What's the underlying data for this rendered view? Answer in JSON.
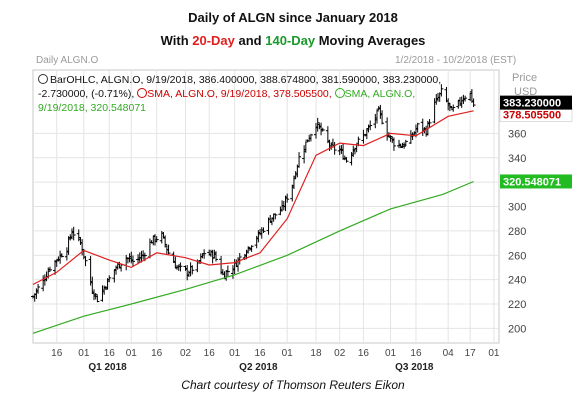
{
  "header": {
    "title_line1": "Daily of ALGN since January 2018",
    "title_line2_prefix": "With ",
    "title_line2_fast": "20-Day",
    "title_line2_mid": " and ",
    "title_line2_slow": "140-Day",
    "title_line2_suffix": " Moving Averages",
    "symbol_label": "Daily ALGN.O",
    "date_range": "1/2/2018 - 10/2/2018 (EST)",
    "price_label": "Price",
    "currency_label": "USD"
  },
  "info": {
    "bar_line": "BarOHLC, ALGN.O, 9/19/2018, 386.400000, 388.674800, 381.590000, 383.230000,",
    "bar_change": "-2.730000, (-0.71%),",
    "sma20_line": "SMA, ALGN.O, 9/19/2018, 378.505500,",
    "sma140_prefix": "SMA, ALGN.O,",
    "sma140_line": "9/19/2018, 320.548071"
  },
  "labels": {
    "price_tag": "383.230000",
    "sma20_tag": "378.505500",
    "sma140_tag": "320.548071"
  },
  "caption": "Chart courtesy of Thomson Reuters Eikon",
  "colors": {
    "sma20": "#e02020",
    "sma140": "#33aa22",
    "bars": "#000000",
    "price_tag_bg": "#000000",
    "sma140_tag_bg": "#22bb22",
    "sma20_tag_text": "#cc0000"
  },
  "chart_data": {
    "type": "line",
    "title": "Daily of ALGN since January 2018",
    "subtitle": "With 20-Day and 140-Day Moving Averages",
    "ylabel": "Price USD",
    "ylim": [
      188,
      412
    ],
    "yticks": [
      200,
      220,
      240,
      260,
      280,
      300,
      320,
      340,
      360
    ],
    "x_ticks": [
      {
        "label": "16",
        "date": "2018-01-16"
      },
      {
        "label": "01",
        "date": "2018-02-01"
      },
      {
        "label": "16",
        "date": "2018-02-16"
      },
      {
        "label": "01",
        "date": "2018-03-01"
      },
      {
        "label": "16",
        "date": "2018-03-16"
      },
      {
        "label": "02",
        "date": "2018-04-02"
      },
      {
        "label": "16",
        "date": "2018-04-16"
      },
      {
        "label": "01",
        "date": "2018-05-01"
      },
      {
        "label": "16",
        "date": "2018-05-16"
      },
      {
        "label": "01",
        "date": "2018-06-01"
      },
      {
        "label": "18",
        "date": "2018-06-18"
      },
      {
        "label": "02",
        "date": "2018-07-02"
      },
      {
        "label": "16",
        "date": "2018-07-16"
      },
      {
        "label": "01",
        "date": "2018-08-01"
      },
      {
        "label": "16",
        "date": "2018-08-16"
      },
      {
        "label": "04",
        "date": "2018-09-04"
      },
      {
        "label": "17",
        "date": "2018-09-17"
      },
      {
        "label": "01",
        "date": "2018-10-01"
      }
    ],
    "x_groups": [
      {
        "label": "Q1 2018",
        "date": "2018-02-15"
      },
      {
        "label": "Q2 2018",
        "date": "2018-05-15"
      },
      {
        "label": "Q3 2018",
        "date": "2018-08-15"
      }
    ],
    "grid": true,
    "last_bar": {
      "date": "2018-09-19",
      "open": 386.4,
      "high": 388.6748,
      "low": 381.59,
      "close": 383.23
    },
    "series": [
      {
        "name": "BarOHLC",
        "kind": "ohlc",
        "closes_approx": [
          {
            "date": "2018-01-02",
            "value": 226
          },
          {
            "date": "2018-01-05",
            "value": 233
          },
          {
            "date": "2018-01-09",
            "value": 242
          },
          {
            "date": "2018-01-12",
            "value": 250
          },
          {
            "date": "2018-01-17",
            "value": 258
          },
          {
            "date": "2018-01-22",
            "value": 266
          },
          {
            "date": "2018-01-25",
            "value": 280
          },
          {
            "date": "2018-01-30",
            "value": 270
          },
          {
            "date": "2018-02-02",
            "value": 255
          },
          {
            "date": "2018-02-06",
            "value": 232
          },
          {
            "date": "2018-02-09",
            "value": 224
          },
          {
            "date": "2018-02-14",
            "value": 236
          },
          {
            "date": "2018-02-20",
            "value": 250
          },
          {
            "date": "2018-02-26",
            "value": 258
          },
          {
            "date": "2018-03-02",
            "value": 255
          },
          {
            "date": "2018-03-08",
            "value": 260
          },
          {
            "date": "2018-03-13",
            "value": 272
          },
          {
            "date": "2018-03-19",
            "value": 276
          },
          {
            "date": "2018-03-23",
            "value": 262
          },
          {
            "date": "2018-03-28",
            "value": 250
          },
          {
            "date": "2018-04-03",
            "value": 246
          },
          {
            "date": "2018-04-09",
            "value": 252
          },
          {
            "date": "2018-04-13",
            "value": 262
          },
          {
            "date": "2018-04-19",
            "value": 260
          },
          {
            "date": "2018-04-24",
            "value": 244
          },
          {
            "date": "2018-04-30",
            "value": 250
          },
          {
            "date": "2018-05-04",
            "value": 258
          },
          {
            "date": "2018-05-10",
            "value": 268
          },
          {
            "date": "2018-05-16",
            "value": 278
          },
          {
            "date": "2018-05-22",
            "value": 290
          },
          {
            "date": "2018-05-29",
            "value": 298
          },
          {
            "date": "2018-06-04",
            "value": 318
          },
          {
            "date": "2018-06-08",
            "value": 340
          },
          {
            "date": "2018-06-13",
            "value": 355
          },
          {
            "date": "2018-06-18",
            "value": 368
          },
          {
            "date": "2018-06-22",
            "value": 360
          },
          {
            "date": "2018-06-27",
            "value": 348
          },
          {
            "date": "2018-07-02",
            "value": 346
          },
          {
            "date": "2018-07-06",
            "value": 338
          },
          {
            "date": "2018-07-11",
            "value": 350
          },
          {
            "date": "2018-07-16",
            "value": 358
          },
          {
            "date": "2018-07-20",
            "value": 366
          },
          {
            "date": "2018-07-25",
            "value": 378
          },
          {
            "date": "2018-07-30",
            "value": 360
          },
          {
            "date": "2018-08-03",
            "value": 352
          },
          {
            "date": "2018-08-08",
            "value": 350
          },
          {
            "date": "2018-08-13",
            "value": 356
          },
          {
            "date": "2018-08-17",
            "value": 366
          },
          {
            "date": "2018-08-22",
            "value": 362
          },
          {
            "date": "2018-08-27",
            "value": 384
          },
          {
            "date": "2018-08-31",
            "value": 394
          },
          {
            "date": "2018-09-06",
            "value": 378
          },
          {
            "date": "2018-09-10",
            "value": 384
          },
          {
            "date": "2018-09-13",
            "value": 390
          },
          {
            "date": "2018-09-17",
            "value": 392
          },
          {
            "date": "2018-09-19",
            "value": 383.23
          }
        ]
      },
      {
        "name": "SMA 20",
        "kind": "line",
        "points": [
          {
            "date": "2018-01-02",
            "value": 236
          },
          {
            "date": "2018-01-16",
            "value": 246
          },
          {
            "date": "2018-02-01",
            "value": 264
          },
          {
            "date": "2018-02-16",
            "value": 256
          },
          {
            "date": "2018-03-01",
            "value": 250
          },
          {
            "date": "2018-03-16",
            "value": 262
          },
          {
            "date": "2018-04-02",
            "value": 258
          },
          {
            "date": "2018-04-16",
            "value": 252
          },
          {
            "date": "2018-05-01",
            "value": 254
          },
          {
            "date": "2018-05-16",
            "value": 262
          },
          {
            "date": "2018-06-01",
            "value": 290
          },
          {
            "date": "2018-06-18",
            "value": 342
          },
          {
            "date": "2018-07-02",
            "value": 352
          },
          {
            "date": "2018-07-16",
            "value": 350
          },
          {
            "date": "2018-08-01",
            "value": 360
          },
          {
            "date": "2018-08-16",
            "value": 358
          },
          {
            "date": "2018-09-04",
            "value": 374
          },
          {
            "date": "2018-09-19",
            "value": 378.5055
          }
        ]
      },
      {
        "name": "SMA 140",
        "kind": "line",
        "points": [
          {
            "date": "2018-01-02",
            "value": 196
          },
          {
            "date": "2018-02-01",
            "value": 210
          },
          {
            "date": "2018-03-01",
            "value": 220
          },
          {
            "date": "2018-04-02",
            "value": 232
          },
          {
            "date": "2018-05-01",
            "value": 244
          },
          {
            "date": "2018-06-01",
            "value": 260
          },
          {
            "date": "2018-07-02",
            "value": 280
          },
          {
            "date": "2018-08-01",
            "value": 298
          },
          {
            "date": "2018-09-01",
            "value": 310
          },
          {
            "date": "2018-09-19",
            "value": 320.548071
          }
        ]
      }
    ]
  }
}
